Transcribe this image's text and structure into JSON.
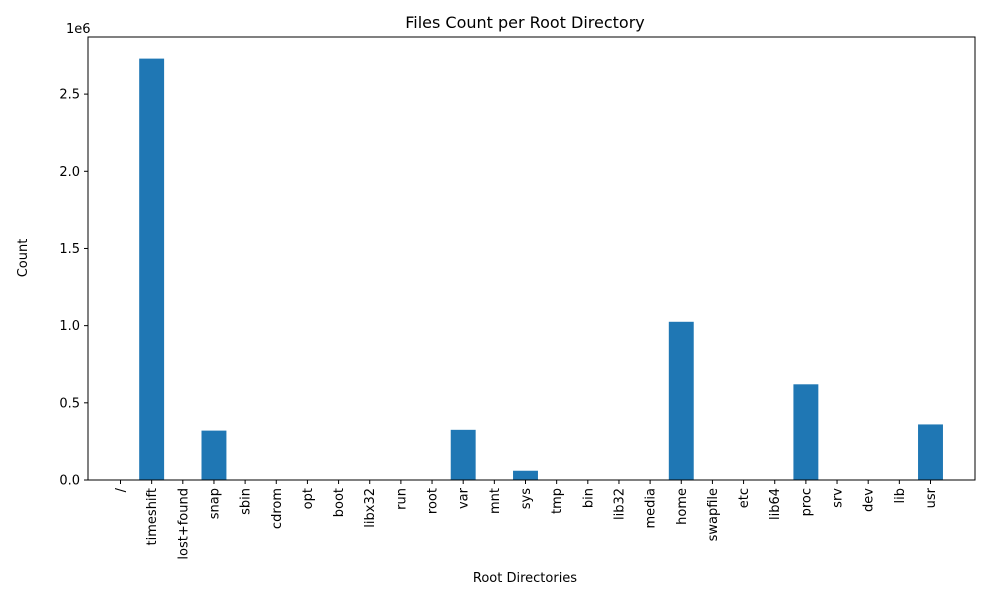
{
  "chart_data": {
    "type": "bar",
    "title": "Files Count per Root Directory",
    "xlabel": "Root Directories",
    "ylabel": "Count",
    "y_offset_text": "1e6",
    "ylim": [
      0,
      2.87
    ],
    "yticks": [
      0.0,
      0.5,
      1.0,
      1.5,
      2.0,
      2.5
    ],
    "ytick_labels": [
      "0.0",
      "0.5",
      "1.0",
      "1.5",
      "2.0",
      "2.5"
    ],
    "bar_color": "#1f77b4",
    "grid": false,
    "categories": [
      "/",
      "timeshift",
      "lost+found",
      "snap",
      "sbin",
      "cdrom",
      "opt",
      "boot",
      "libx32",
      "run",
      "root",
      "var",
      "mnt",
      "sys",
      "tmp",
      "bin",
      "lib32",
      "media",
      "home",
      "swapfile",
      "etc",
      "lib64",
      "proc",
      "srv",
      "dev",
      "lib",
      "usr"
    ],
    "values": [
      0,
      2.73,
      0,
      0.32,
      0,
      0,
      0,
      0,
      0,
      0,
      0,
      0.325,
      0,
      0.06,
      0,
      0,
      0,
      0,
      1.025,
      0,
      0,
      0,
      0.62,
      0,
      0,
      0,
      0.36
    ]
  }
}
